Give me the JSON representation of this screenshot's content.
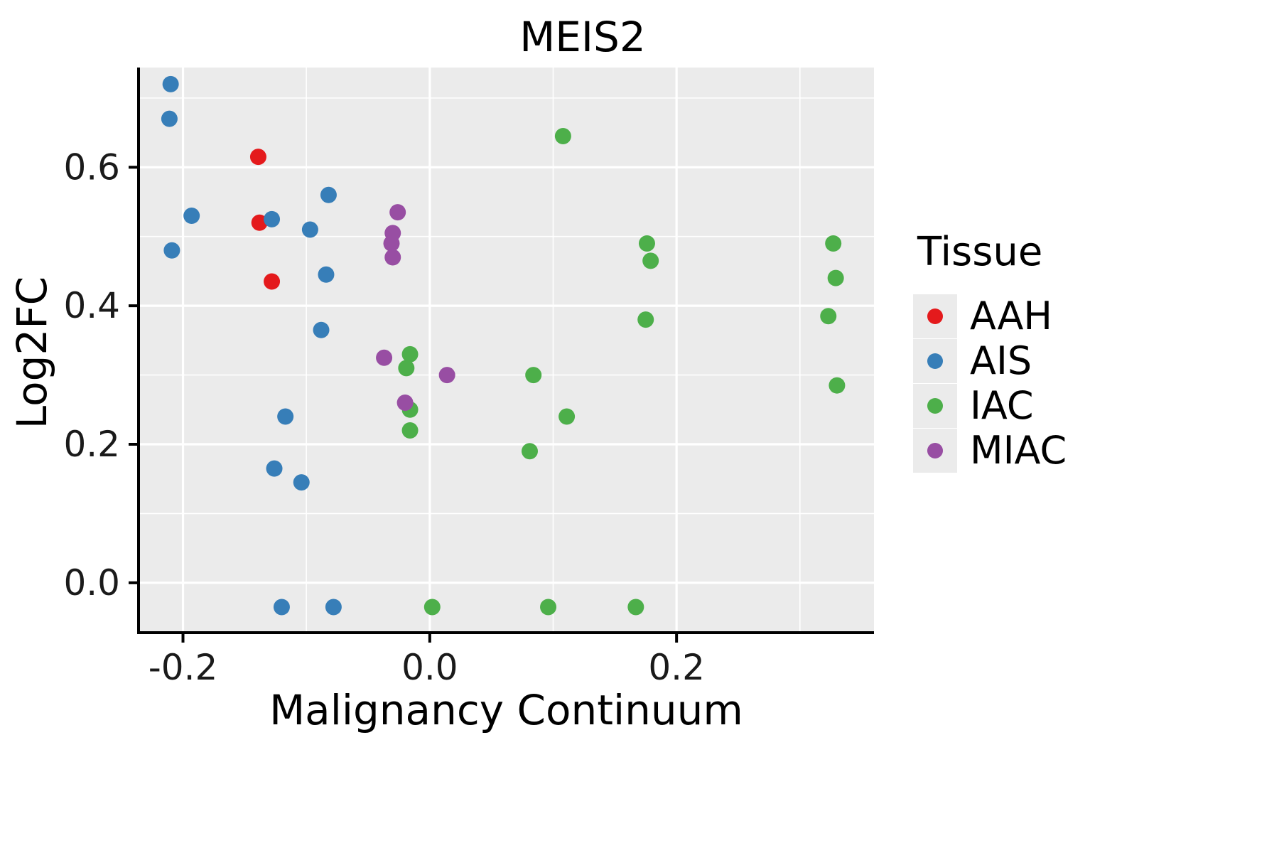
{
  "chart_data": {
    "type": "scatter",
    "title": "MEIS2",
    "xlabel": "Malignancy Continuum",
    "ylabel": "Log2FC",
    "xlim": [
      -0.236,
      0.36
    ],
    "ylim": [
      -0.072,
      0.744
    ],
    "x_major_ticks": [
      -0.2,
      0.0,
      0.2
    ],
    "x_minor_ticks": [
      -0.1,
      0.1,
      0.3
    ],
    "y_major_ticks": [
      0.0,
      0.2,
      0.4,
      0.6
    ],
    "y_minor_ticks": [
      0.1,
      0.3,
      0.5,
      0.7
    ],
    "x_tick_labels": [
      "-0.2",
      "0.0",
      "0.2"
    ],
    "y_tick_labels": [
      "0.0",
      "0.2",
      "0.4",
      "0.6"
    ],
    "grid": true,
    "panel_bg": "#EBEBEB",
    "grid_color": "#FFFFFF",
    "axis_color": "#000000",
    "tick_label_color": "#1a1a1a",
    "legend": {
      "title": "Tissue",
      "position": "right"
    },
    "series": [
      {
        "name": "AAH",
        "color": "#E41A1C",
        "points": [
          [
            -0.139,
            0.615
          ],
          [
            -0.138,
            0.52
          ],
          [
            -0.128,
            0.435
          ]
        ]
      },
      {
        "name": "AIS",
        "color": "#377EB8",
        "points": [
          [
            -0.21,
            0.72
          ],
          [
            -0.211,
            0.67
          ],
          [
            -0.193,
            0.53
          ],
          [
            -0.209,
            0.48
          ],
          [
            -0.128,
            0.525
          ],
          [
            -0.082,
            0.56
          ],
          [
            -0.097,
            0.51
          ],
          [
            -0.084,
            0.445
          ],
          [
            -0.088,
            0.365
          ],
          [
            -0.117,
            0.24
          ],
          [
            -0.126,
            0.165
          ],
          [
            -0.104,
            0.145
          ],
          [
            -0.12,
            -0.035
          ],
          [
            -0.078,
            -0.035
          ]
        ]
      },
      {
        "name": "IAC",
        "color": "#4DAF4A",
        "points": [
          [
            0.108,
            0.645
          ],
          [
            -0.016,
            0.33
          ],
          [
            -0.019,
            0.31
          ],
          [
            -0.016,
            0.25
          ],
          [
            -0.016,
            0.22
          ],
          [
            0.084,
            0.3
          ],
          [
            0.111,
            0.24
          ],
          [
            0.081,
            0.19
          ],
          [
            0.176,
            0.49
          ],
          [
            0.179,
            0.465
          ],
          [
            0.175,
            0.38
          ],
          [
            0.327,
            0.49
          ],
          [
            0.329,
            0.44
          ],
          [
            0.323,
            0.385
          ],
          [
            0.33,
            0.285
          ],
          [
            0.002,
            -0.035
          ],
          [
            0.096,
            -0.035
          ],
          [
            0.167,
            -0.035
          ]
        ]
      },
      {
        "name": "MIAC",
        "color": "#984EA3",
        "points": [
          [
            -0.026,
            0.535
          ],
          [
            -0.03,
            0.505
          ],
          [
            -0.031,
            0.49
          ],
          [
            -0.03,
            0.47
          ],
          [
            -0.037,
            0.325
          ],
          [
            -0.02,
            0.26
          ],
          [
            0.014,
            0.3
          ]
        ]
      }
    ]
  }
}
